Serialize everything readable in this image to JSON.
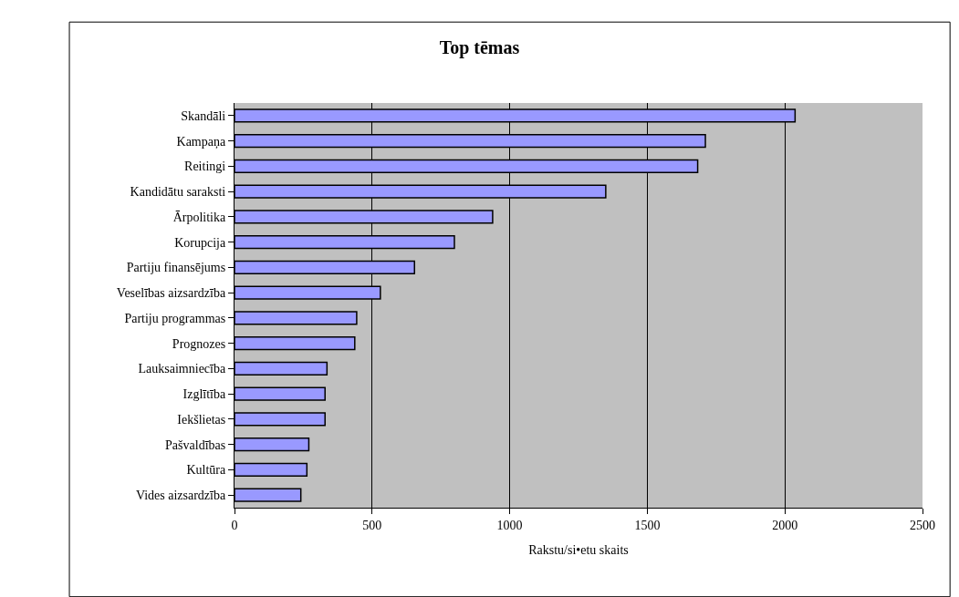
{
  "chart_data": {
    "type": "bar",
    "orientation": "horizontal",
    "title": "Top tēmas",
    "xlabel": "Rakstu/si•etu skaits",
    "categories": [
      "Skandāli",
      "Kampaņa",
      "Reitingi",
      "Kandidātu saraksti",
      "Ārpolitika",
      "Korupcija",
      "Partiju finansējums",
      "Veselības aizsardzība",
      "Partiju programmas",
      "Prognozes",
      "Lauksaimniecība",
      "Izglītība",
      "Iekšlietas",
      "Pašvaldības",
      "Kultūra",
      "Vides aizsardzība"
    ],
    "values": [
      2037,
      1711,
      1683,
      1349,
      938,
      799,
      654,
      530,
      444,
      437,
      336,
      329,
      329,
      270,
      263,
      241
    ],
    "color": "#9999ff",
    "xlim": [
      0,
      2500
    ],
    "xticks": [
      0,
      500,
      1000,
      1500,
      2000,
      2500
    ],
    "grid": "x",
    "legend": false
  }
}
